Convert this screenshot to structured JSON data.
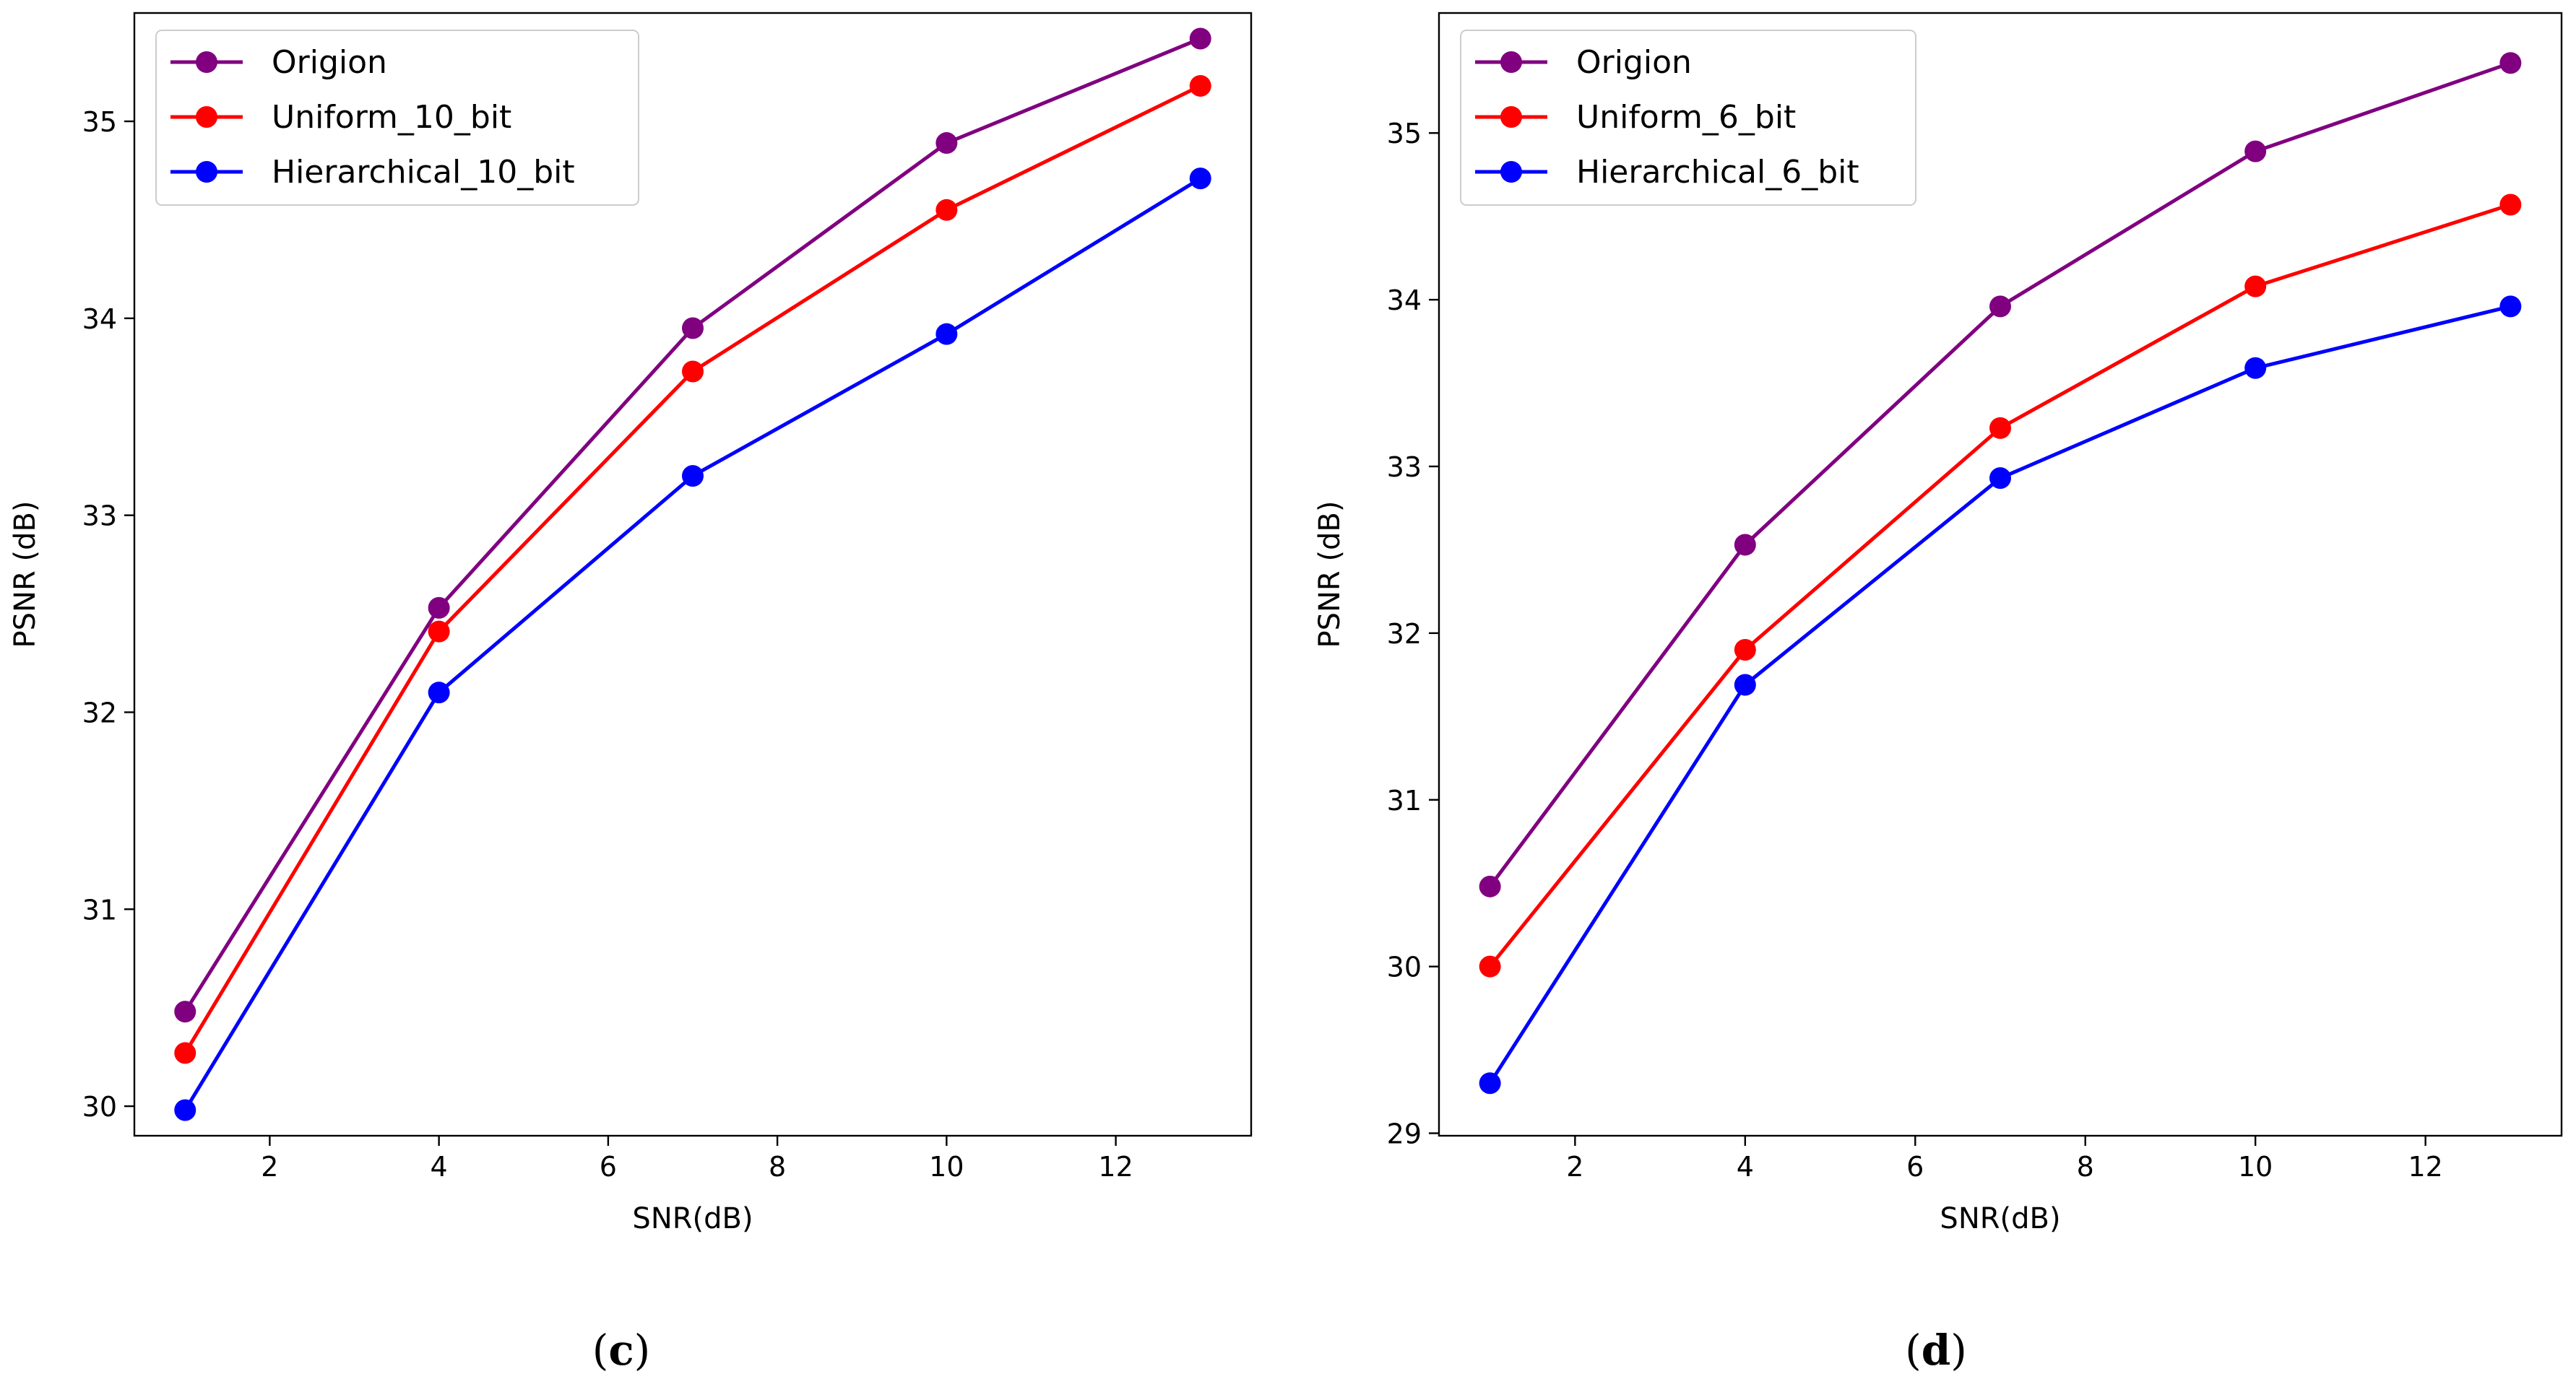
{
  "chart_data": [
    {
      "type": "line",
      "panel_label": "c",
      "x": [
        1,
        4,
        7,
        10,
        13
      ],
      "xlabel": "SNR(dB)",
      "ylabel": "PSNR (dB)",
      "xlim": [
        0.4,
        13.6
      ],
      "ylim": [
        29.85,
        35.55
      ],
      "xticks": [
        2,
        4,
        6,
        8,
        10,
        12
      ],
      "yticks": [
        30,
        31,
        32,
        33,
        34,
        35
      ],
      "grid": false,
      "legend_position": "top-left",
      "series": [
        {
          "name": "Origion",
          "color": "#800080",
          "values": [
            30.48,
            32.53,
            33.95,
            34.89,
            35.42
          ]
        },
        {
          "name": "Uniform_10_bit",
          "color": "#ff0000",
          "values": [
            30.27,
            32.41,
            33.73,
            34.55,
            35.18
          ]
        },
        {
          "name": "Hierarchical_10_bit",
          "color": "#0000ff",
          "values": [
            29.98,
            32.1,
            33.2,
            33.92,
            34.71
          ]
        }
      ]
    },
    {
      "type": "line",
      "panel_label": "d",
      "x": [
        1,
        4,
        7,
        10,
        13
      ],
      "xlabel": "SNR(dB)",
      "ylabel": "PSNR (dB)",
      "xlim": [
        0.4,
        13.6
      ],
      "ylim": [
        28.985,
        35.72
      ],
      "xticks": [
        2,
        4,
        6,
        8,
        10,
        12
      ],
      "yticks": [
        29,
        30,
        31,
        32,
        33,
        34,
        35
      ],
      "grid": false,
      "legend_position": "top-left",
      "series": [
        {
          "name": "Origion",
          "color": "#800080",
          "values": [
            30.48,
            32.53,
            33.96,
            34.89,
            35.42
          ]
        },
        {
          "name": "Uniform_6_bit",
          "color": "#ff0000",
          "values": [
            30.0,
            31.9,
            33.23,
            34.08,
            34.57
          ]
        },
        {
          "name": "Hierarchical_6_bit",
          "color": "#0000ff",
          "values": [
            29.3,
            31.69,
            32.93,
            33.59,
            33.96
          ]
        }
      ]
    }
  ]
}
